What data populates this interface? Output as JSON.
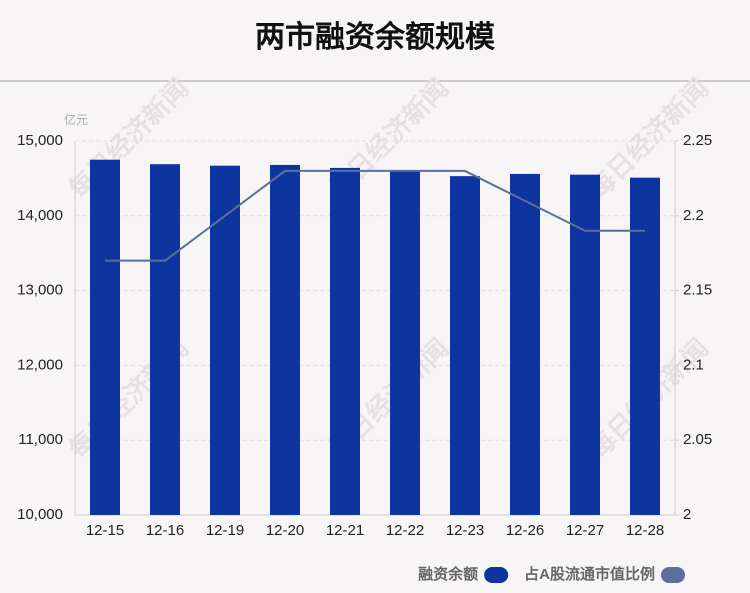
{
  "chart_data": {
    "type": "bar",
    "title": "两市融资余额规模",
    "y_unit": "亿元",
    "watermark": "每日经济新闻",
    "categories": [
      "12-15",
      "12-16",
      "12-19",
      "12-20",
      "12-21",
      "12-22",
      "12-23",
      "12-26",
      "12-27",
      "12-28"
    ],
    "series": [
      {
        "name": "融资余额",
        "type": "bar",
        "color": "#0d35a0",
        "values": [
          14750,
          14690,
          14670,
          14680,
          14640,
          14600,
          14530,
          14560,
          14550,
          14510
        ]
      },
      {
        "name": "占A股流通市值比例",
        "type": "line",
        "axis": "y2",
        "color": "#5b6f9c",
        "values": [
          2.17,
          2.17,
          2.2,
          2.23,
          2.23,
          2.23,
          2.23,
          2.21,
          2.19,
          2.19
        ]
      }
    ],
    "ylim": [
      10000,
      15000
    ],
    "yticks": [
      {
        "value": 10000,
        "label": "10,000"
      },
      {
        "value": 11000,
        "label": "11,000"
      },
      {
        "value": 12000,
        "label": "12,000"
      },
      {
        "value": 13000,
        "label": "13,000"
      },
      {
        "value": 14000,
        "label": "14,000"
      },
      {
        "value": 15000,
        "label": "15,000"
      }
    ],
    "y2lim": [
      2,
      2.25
    ],
    "y2ticks": [
      2,
      2.05,
      2.1,
      2.15,
      2.2,
      2.25
    ],
    "grid": true,
    "legend": "bottom-right"
  }
}
